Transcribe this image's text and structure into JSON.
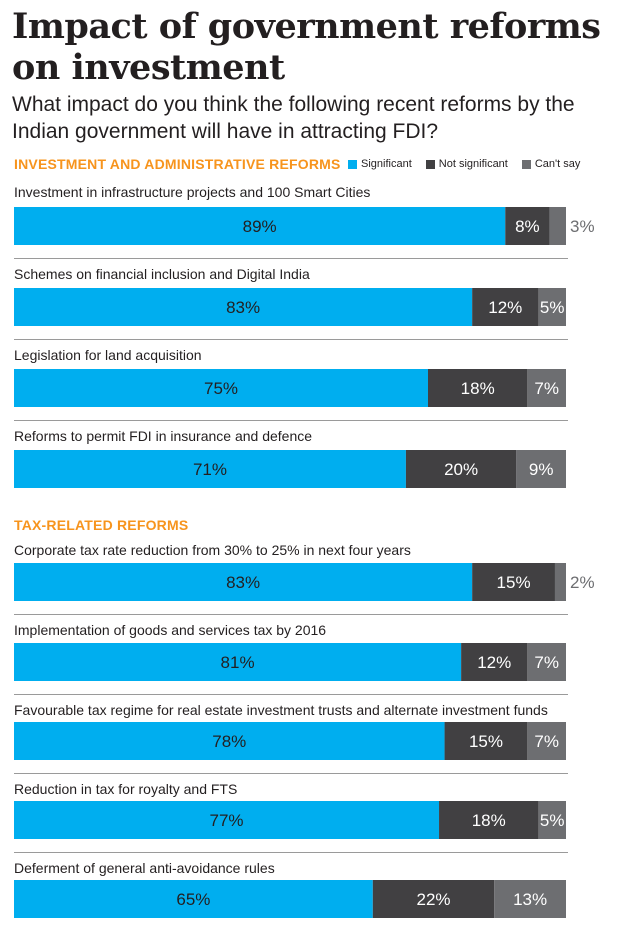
{
  "title": "Impact of government reforms on investment",
  "subtitle": "What impact do you think the following recent reforms by the Indian government will have in attracting FDI?",
  "colors": {
    "significant": "#00aeef",
    "not_significant": "#414042",
    "cant_say": "#6d6e71",
    "section": "#f7941d"
  },
  "legend": [
    {
      "label": "Significant",
      "color": "#00aeef"
    },
    {
      "label": "Not significant",
      "color": "#414042"
    },
    {
      "label": "Can't say",
      "color": "#6d6e71"
    }
  ],
  "sections": [
    {
      "heading": "INVESTMENT AND ADMINISTRATIVE REFORMS"
    },
    {
      "heading": "TAX-RELATED REFORMS"
    }
  ],
  "chart_data": {
    "type": "bar",
    "orientation": "horizontal-stacked",
    "unit": "%",
    "series_names": [
      "Significant",
      "Not significant",
      "Can't say"
    ],
    "categories": [
      "Investment in infrastructure projects and 100 Smart Cities",
      "Schemes on financial inclusion and Digital India",
      "Legislation for land acquisition",
      "Reforms to permit FDI in insurance and defence",
      "Corporate tax rate reduction from 30% to 25% in next four years",
      "Implementation of goods and services tax by 2016",
      "Favourable tax regime for real estate investment trusts and alternate investment funds",
      "Reduction in tax for royalty and FTS",
      "Deferment of general anti-avoidance rules"
    ],
    "section_index": [
      0,
      0,
      0,
      0,
      1,
      1,
      1,
      1,
      1
    ],
    "series": [
      {
        "name": "Significant",
        "values": [
          89,
          83,
          75,
          71,
          83,
          81,
          78,
          77,
          65
        ],
        "labels": [
          "89%",
          "83%",
          "75%",
          "71%",
          "83%",
          "81%",
          "78%",
          "77%",
          "65%"
        ]
      },
      {
        "name": "Not significant",
        "values": [
          8,
          12,
          18,
          20,
          15,
          12,
          15,
          18,
          22
        ],
        "labels": [
          "8%",
          "12%",
          "18%",
          "20%",
          "15%",
          "12%",
          "15%",
          "18%",
          "22%"
        ]
      },
      {
        "name": "Can't say",
        "values": [
          3,
          5,
          7,
          9,
          2,
          7,
          7,
          5,
          13
        ],
        "labels": [
          "3%",
          "5%",
          "7%",
          "9%",
          "2%",
          "7%",
          "7%",
          "5%",
          "13%"
        ]
      }
    ],
    "xlim": [
      0,
      100
    ],
    "grid": false,
    "legend_position": "top-right"
  }
}
